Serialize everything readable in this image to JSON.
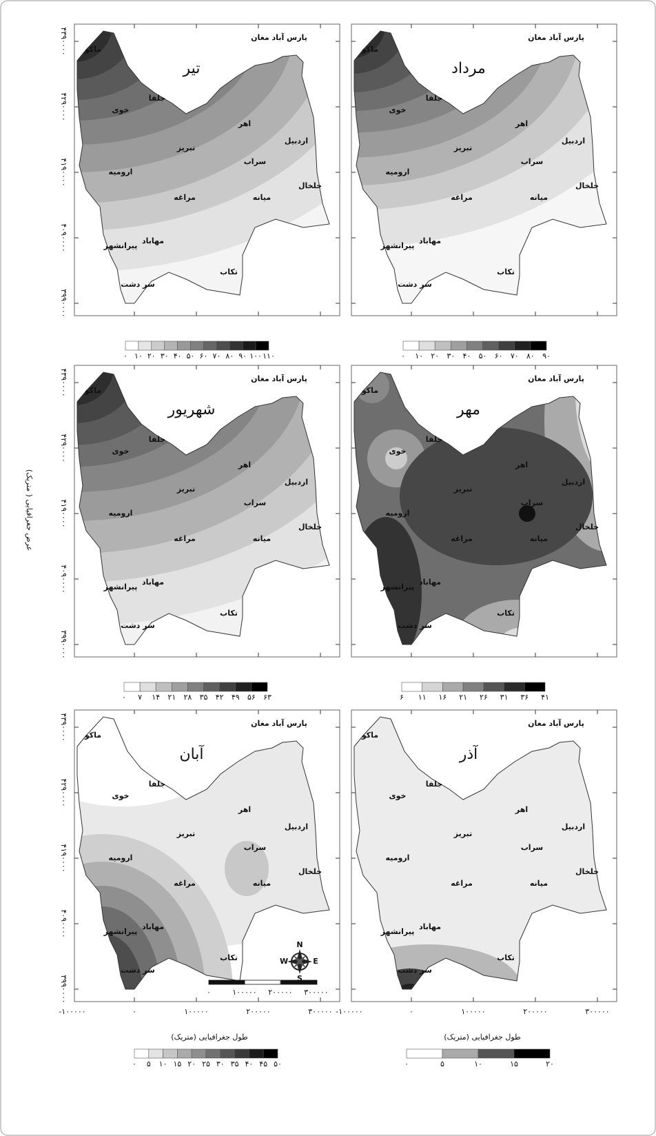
{
  "y_axis_label": "عرض جغرافیایی ( متریک)",
  "x_axis_label": "طول جغرافیایی (متریک)",
  "y_ticks": [
    "۴۳۹۰۰۰۰",
    "۴۲۹۰۰۰۰",
    "۴۱۹۰۰۰۰",
    "۴۰۹۰۰۰۰",
    "۳۹۹۰۰۰۰"
  ],
  "x_ticks": [
    "-۱۰۰۰۰۰",
    "۰",
    "۱۰۰۰۰۰",
    "۲۰۰۰۰۰",
    "۳۰۰۰۰۰"
  ],
  "map_labels": {
    "region": "پارس آباد مغان",
    "cities": [
      "ماکو",
      "جلفا",
      "خوی",
      "اهر",
      "اردبیل",
      "تبریز",
      "سراب",
      "ارومیه",
      "خلخال",
      "مراغه",
      "میانه",
      "مهاباد",
      "پیرانشهر",
      "تکاب",
      "سر دشت"
    ]
  },
  "panels": [
    {
      "title": "تیر",
      "legend": [
        "۰",
        "۱۰",
        "۲۰",
        "۳۰",
        "۴۰",
        "۵۰",
        "۶۰",
        "۷۰",
        "۸۰",
        "۹۰",
        "۱۰۰",
        "۱۱۰"
      ]
    },
    {
      "title": "مرداد",
      "legend": [
        "۰",
        "۱۰",
        "۲۰",
        "۳۰",
        "۴۰",
        "۵۰",
        "۶۰",
        "۷۰",
        "۸۰",
        "۹۰"
      ]
    },
    {
      "title": "شهریور",
      "legend": [
        "۰",
        "۷",
        "۱۴",
        "۲۱",
        "۲۸",
        "۳۵",
        "۴۲",
        "۴۹",
        "۵۶",
        "۶۳"
      ]
    },
    {
      "title": "مهر",
      "legend": [
        "۶",
        "۱۱",
        "۱۶",
        "۲۱",
        "۲۶",
        "۳۱",
        "۳۶",
        "۴۱"
      ]
    },
    {
      "title": "آبان",
      "legend": [
        "۰",
        "۵",
        "۱۰",
        "۱۵",
        "۲۰",
        "۲۵",
        "۳۰",
        "۳۵",
        "۴۰",
        "۴۵",
        "۵۰"
      ]
    },
    {
      "title": "آذر",
      "legend": [
        "۰",
        "۵",
        "۱۰",
        "۱۵",
        "۲۰"
      ]
    }
  ],
  "scale_bar": [
    "۰",
    "۱۰۰۰۰۰",
    "۲۰۰۰۰۰",
    "۳۰۰۰۰۰"
  ],
  "compass": [
    "N",
    "S",
    "E",
    "W"
  ]
}
